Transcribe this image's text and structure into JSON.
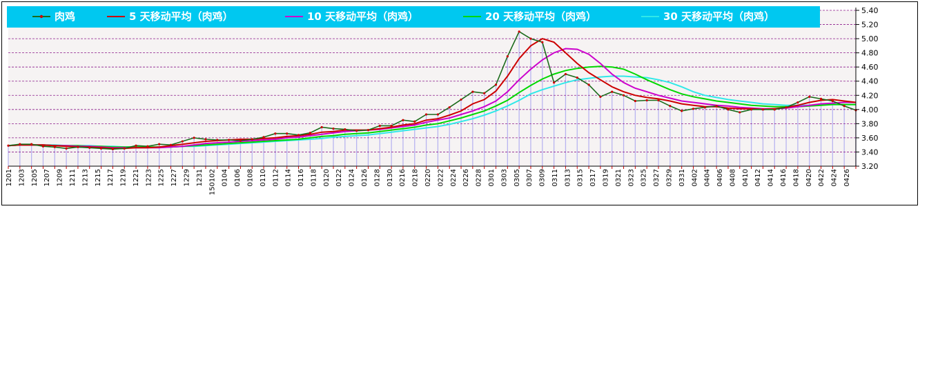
{
  "chart_data": {
    "type": "line",
    "title": "",
    "xlabel": "",
    "ylabel": "",
    "ylim": [
      3.2,
      5.4
    ],
    "y_ticks": [
      "3.20",
      "3.40",
      "3.60",
      "3.80",
      "4.00",
      "4.20",
      "4.40",
      "4.60",
      "4.80",
      "5.00",
      "5.20",
      "5.40"
    ],
    "x_ticks": [
      "1201",
      "1203",
      "1205",
      "1207",
      "1209",
      "1211",
      "1213",
      "1215",
      "1217",
      "1219",
      "1221",
      "1223",
      "1225",
      "1227",
      "1229",
      "1231",
      "150102",
      "0104",
      "0106",
      "0108",
      "0110",
      "0112",
      "0114",
      "0116",
      "0118",
      "0120",
      "0122",
      "0124",
      "0126",
      "0128",
      "0130",
      "0216",
      "0218",
      "0220",
      "0222",
      "0224",
      "0226",
      "0228",
      "0301",
      "0303",
      "0305",
      "0307",
      "0309",
      "0311",
      "0313",
      "0315",
      "0317",
      "0319",
      "0321",
      "0323",
      "0325",
      "0327",
      "0329",
      "0331",
      "0402",
      "0404",
      "0406",
      "0408",
      "0410",
      "0412",
      "0414",
      "0416",
      "0418",
      "0420",
      "0422",
      "0424",
      "0426"
    ],
    "grid": "horizontal-dashed",
    "legend_position": "top",
    "legend_bg_color": "#00C8F0",
    "axis_side": "right",
    "series": [
      {
        "name": "肉鸡",
        "color": "#1A6B1A",
        "marker_color": "#CC0000",
        "values": [
          3.49,
          3.51,
          3.51,
          3.48,
          3.47,
          3.45,
          3.47,
          3.46,
          3.45,
          3.44,
          3.45,
          3.49,
          3.48,
          3.51,
          3.5,
          3.55,
          3.6,
          3.58,
          3.57,
          3.57,
          3.56,
          3.58,
          3.61,
          3.66,
          3.66,
          3.64,
          3.67,
          3.75,
          3.73,
          3.72,
          3.7,
          3.71,
          3.77,
          3.77,
          3.85,
          3.83,
          3.93,
          3.93,
          4.03,
          4.14,
          4.25,
          4.23,
          4.35,
          4.75,
          5.1,
          5.0,
          4.95,
          4.38,
          4.5,
          4.45,
          4.35,
          4.18,
          4.25,
          4.2,
          4.12,
          4.13,
          4.13,
          4.05,
          3.98,
          4.01,
          4.03,
          4.05,
          4.0,
          3.96,
          4.0,
          4.0,
          4.0,
          4.03,
          4.1,
          4.18,
          4.15,
          4.12,
          4.05,
          3.99
        ]
      },
      {
        "name": "5 天移动平均（肉鸡）",
        "color": "#CC0000",
        "values": [
          3.49,
          3.5,
          3.5,
          3.5,
          3.49,
          3.48,
          3.47,
          3.47,
          3.46,
          3.45,
          3.45,
          3.46,
          3.46,
          3.47,
          3.49,
          3.51,
          3.53,
          3.55,
          3.56,
          3.57,
          3.58,
          3.58,
          3.59,
          3.6,
          3.62,
          3.63,
          3.65,
          3.68,
          3.69,
          3.71,
          3.71,
          3.71,
          3.73,
          3.75,
          3.78,
          3.8,
          3.85,
          3.87,
          3.92,
          3.98,
          4.08,
          4.14,
          4.26,
          4.47,
          4.72,
          4.9,
          5.0,
          4.95,
          4.8,
          4.65,
          4.52,
          4.42,
          4.32,
          4.25,
          4.2,
          4.17,
          4.15,
          4.12,
          4.08,
          4.06,
          4.04,
          4.04,
          4.02,
          4.01,
          4.01,
          4.0,
          4.01,
          4.03,
          4.06,
          4.1,
          4.13,
          4.14,
          4.12,
          4.1
        ]
      },
      {
        "name": "10 天移动平均（肉鸡）",
        "color": "#CC00CC",
        "values": [
          3.49,
          3.5,
          3.5,
          3.5,
          3.49,
          3.49,
          3.48,
          3.48,
          3.47,
          3.46,
          3.46,
          3.46,
          3.46,
          3.46,
          3.47,
          3.48,
          3.5,
          3.52,
          3.53,
          3.54,
          3.55,
          3.56,
          3.57,
          3.58,
          3.6,
          3.61,
          3.63,
          3.65,
          3.67,
          3.69,
          3.7,
          3.71,
          3.72,
          3.74,
          3.76,
          3.78,
          3.82,
          3.85,
          3.88,
          3.93,
          3.98,
          4.04,
          4.12,
          4.25,
          4.42,
          4.57,
          4.7,
          4.8,
          4.86,
          4.85,
          4.78,
          4.65,
          4.5,
          4.38,
          4.3,
          4.25,
          4.2,
          4.16,
          4.12,
          4.1,
          4.08,
          4.06,
          4.05,
          4.03,
          4.02,
          4.01,
          4.01,
          4.02,
          4.04,
          4.06,
          4.08,
          4.09,
          4.1,
          4.1
        ]
      },
      {
        "name": "20 天移动平均（肉鸡）",
        "color": "#00D800",
        "values": [
          3.49,
          3.5,
          3.5,
          3.5,
          3.49,
          3.49,
          3.49,
          3.48,
          3.48,
          3.47,
          3.47,
          3.47,
          3.47,
          3.47,
          3.47,
          3.48,
          3.49,
          3.5,
          3.51,
          3.52,
          3.53,
          3.54,
          3.55,
          3.56,
          3.57,
          3.58,
          3.6,
          3.62,
          3.63,
          3.65,
          3.66,
          3.67,
          3.69,
          3.71,
          3.73,
          3.75,
          3.78,
          3.8,
          3.84,
          3.88,
          3.93,
          3.98,
          4.05,
          4.13,
          4.24,
          4.34,
          4.43,
          4.5,
          4.55,
          4.58,
          4.6,
          4.61,
          4.6,
          4.57,
          4.5,
          4.42,
          4.35,
          4.28,
          4.22,
          4.18,
          4.15,
          4.12,
          4.1,
          4.08,
          4.06,
          4.05,
          4.04,
          4.04,
          4.04,
          4.05,
          4.06,
          4.07,
          4.07,
          4.07
        ]
      },
      {
        "name": "30 天移动平均（肉鸡）",
        "color": "#30E8E8",
        "values": [
          3.49,
          3.5,
          3.5,
          3.5,
          3.5,
          3.49,
          3.49,
          3.49,
          3.48,
          3.48,
          3.47,
          3.47,
          3.47,
          3.47,
          3.47,
          3.48,
          3.48,
          3.49,
          3.5,
          3.51,
          3.52,
          3.53,
          3.54,
          3.55,
          3.56,
          3.57,
          3.58,
          3.59,
          3.61,
          3.62,
          3.63,
          3.64,
          3.66,
          3.68,
          3.7,
          3.72,
          3.74,
          3.76,
          3.79,
          3.83,
          3.87,
          3.92,
          3.98,
          4.05,
          4.13,
          4.22,
          4.28,
          4.33,
          4.38,
          4.42,
          4.44,
          4.46,
          4.47,
          4.47,
          4.46,
          4.45,
          4.42,
          4.38,
          4.32,
          4.25,
          4.2,
          4.17,
          4.14,
          4.12,
          4.1,
          4.08,
          4.07,
          4.06,
          4.06,
          4.06,
          4.07,
          4.07,
          4.07,
          4.07
        ]
      }
    ]
  }
}
